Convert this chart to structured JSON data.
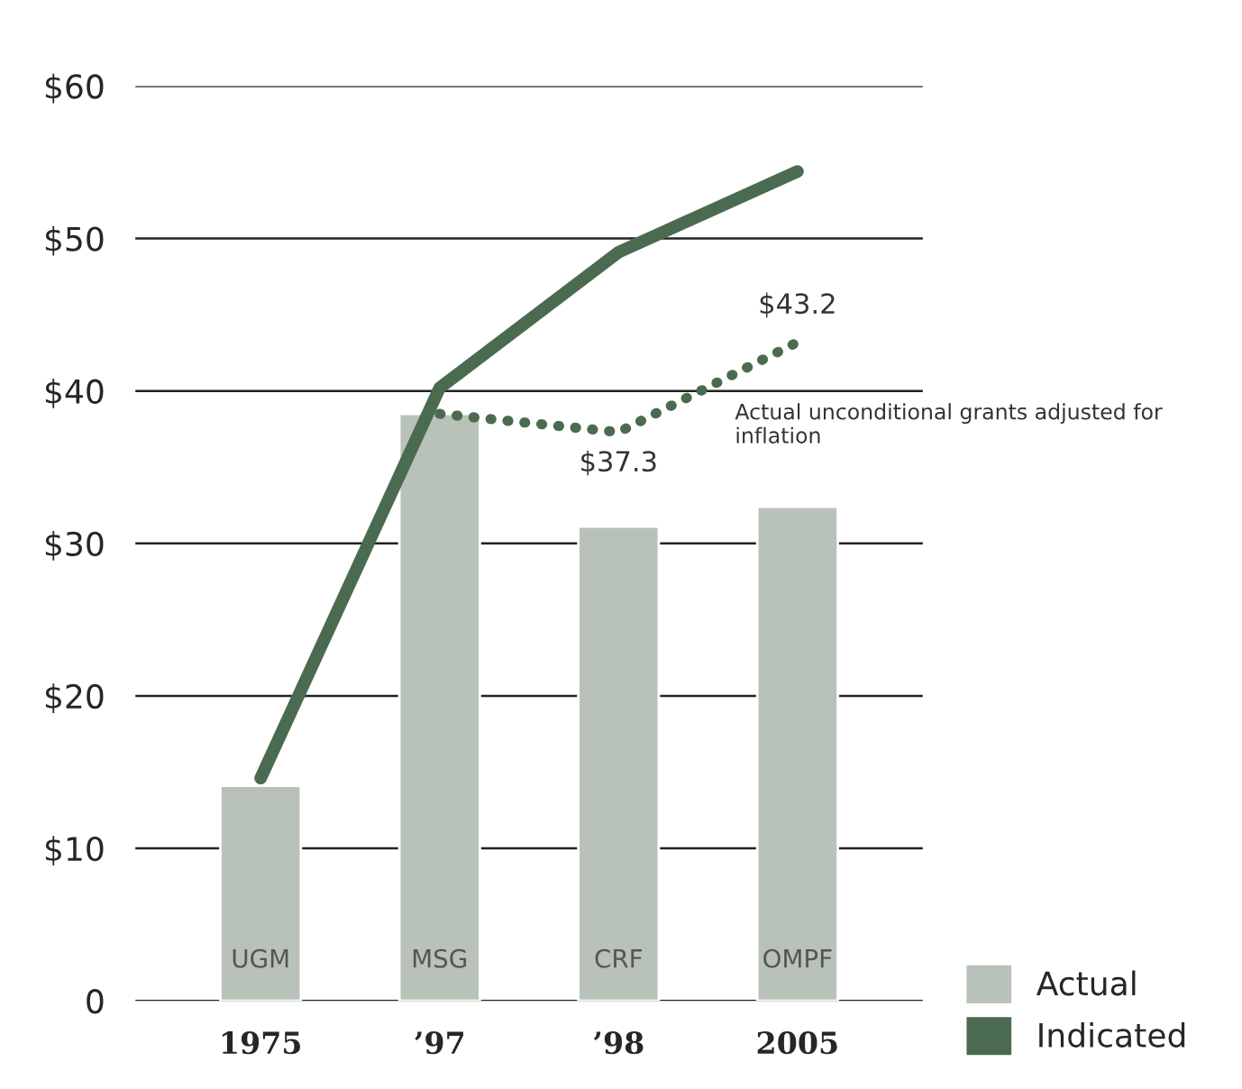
{
  "chart_data": {
    "type": "bar",
    "categories": [
      "1975",
      "’97",
      "’98",
      "2005"
    ],
    "series": [
      {
        "name": "Actual",
        "color": "#b8c2b8",
        "values": [
          14.1,
          38.5,
          31.1,
          32.4
        ]
      },
      {
        "name": "Indicated",
        "type": "line",
        "color": "#4b6b50",
        "line_style": "solid",
        "values": [
          14.6,
          40.2,
          49.1,
          54.4
        ]
      },
      {
        "name": "Actual unconditional grants adjusted for inflation",
        "type": "line",
        "color": "#4b6b50",
        "line_style": "dotted",
        "values": [
          null,
          38.5,
          37.3,
          43.2
        ],
        "value_labels": [
          null,
          null,
          "$37.3",
          "$43.2"
        ]
      }
    ],
    "annotations": [
      "UGM",
      "MSG",
      "CRF",
      "OMPF"
    ],
    "ylim": [
      0,
      60
    ],
    "yticks": [
      {
        "value": 0,
        "label": "0"
      },
      {
        "value": 10,
        "label": "$10"
      },
      {
        "value": 20,
        "label": "$20"
      },
      {
        "value": 30,
        "label": "$30"
      },
      {
        "value": 40,
        "label": "$40"
      },
      {
        "value": 50,
        "label": "$50"
      },
      {
        "value": 60,
        "label": "$60"
      }
    ],
    "grid": "y",
    "legend": "bottom right"
  }
}
